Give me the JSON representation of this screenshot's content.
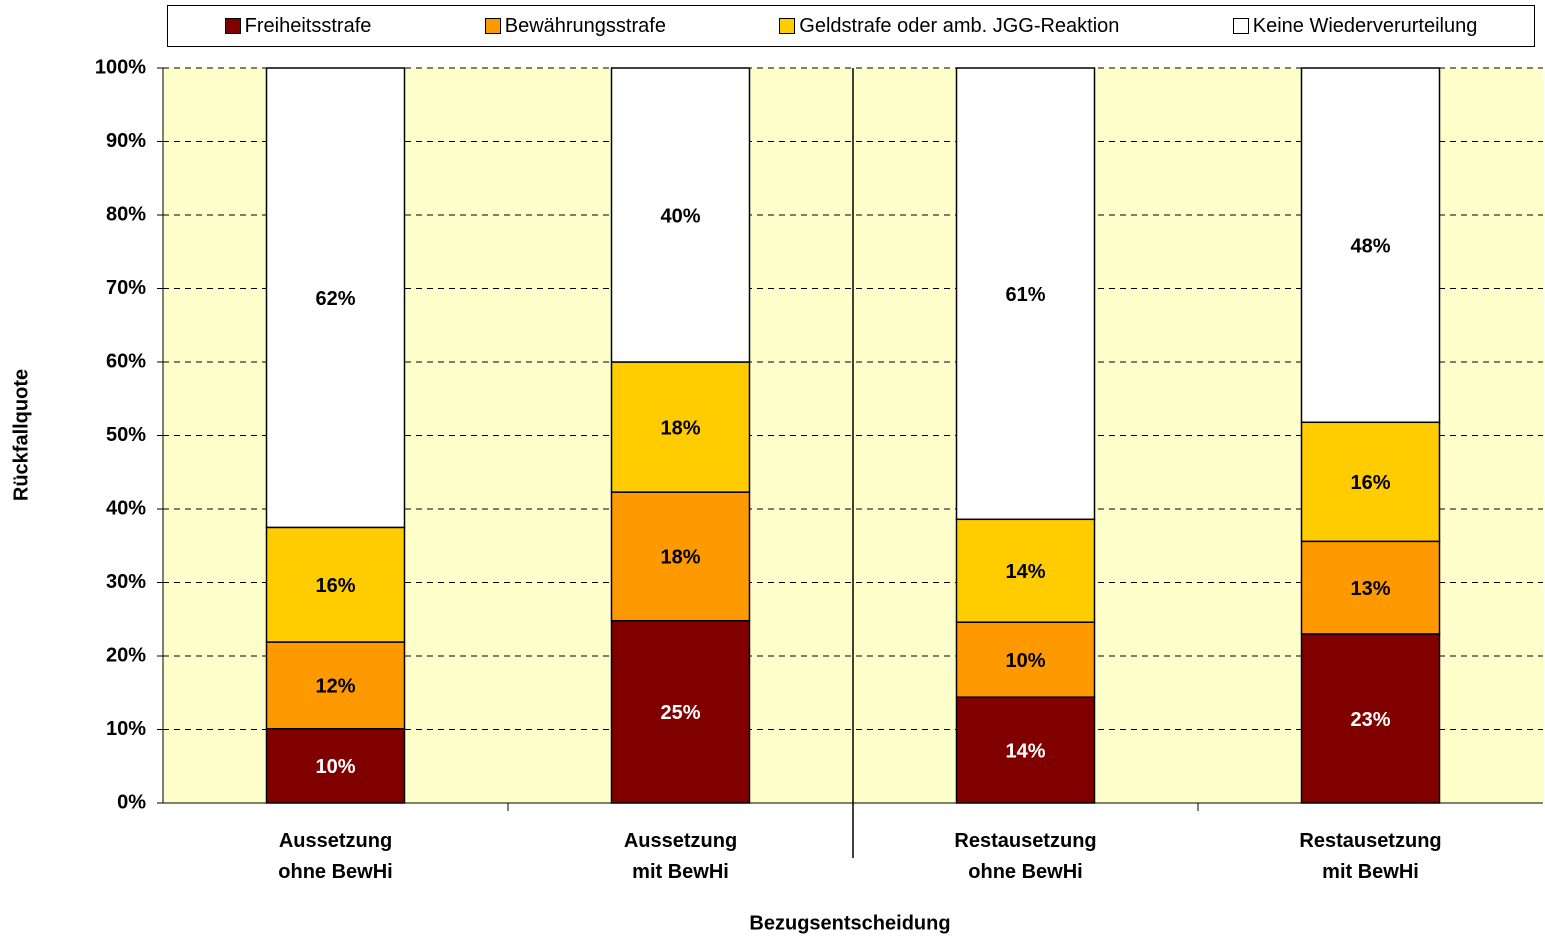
{
  "chart_data": {
    "type": "stacked_bar",
    "categories": [
      "Aussetzung\nohne BewHi",
      "Aussetzung\nmit BewHi",
      "Restausetzung\nohne BewHi",
      "Restausetzung\nmit BewHi"
    ],
    "series": [
      {
        "name": "Freiheitsstrafe",
        "color": "#800000",
        "values": [
          10.1,
          24.8,
          14.4,
          23.0
        ],
        "value_labels": [
          "10%",
          "25%",
          "14%",
          "23%"
        ]
      },
      {
        "name": "Bewährungsstrafe",
        "color": "#ff9900",
        "values": [
          11.8,
          17.5,
          10.2,
          12.6
        ],
        "value_labels": [
          "12%",
          "18%",
          "10%",
          "13%"
        ]
      },
      {
        "name": "Geldstrafe oder amb. JGG-Reaktion",
        "color": "#ffcc00",
        "values": [
          15.6,
          17.7,
          14.0,
          16.2
        ],
        "value_labels": [
          "16%",
          "18%",
          "14%",
          "16%"
        ]
      },
      {
        "name": "Keine Wiederverurteilung",
        "color": "#ffffff",
        "values": [
          62.5,
          40.0,
          61.4,
          48.2
        ],
        "value_labels": [
          "62%",
          "40%",
          "61%",
          "48%"
        ]
      }
    ],
    "ylabel": "Rückfallquote",
    "xlabel": "Bezugsentscheidung",
    "ylim": [
      0,
      100
    ],
    "yticks": [
      {
        "value": 0,
        "label": "0%"
      },
      {
        "value": 10,
        "label": "10%"
      },
      {
        "value": 20,
        "label": "20%"
      },
      {
        "value": 30,
        "label": "30%"
      },
      {
        "value": 40,
        "label": "40%"
      },
      {
        "value": 50,
        "label": "50%"
      },
      {
        "value": 60,
        "label": "60%"
      },
      {
        "value": 70,
        "label": "70%"
      },
      {
        "value": 80,
        "label": "80%"
      },
      {
        "value": 90,
        "label": "90%"
      },
      {
        "value": 100,
        "label": "100%"
      }
    ],
    "grid": true,
    "legend": "top",
    "background": "#ffffcc"
  }
}
